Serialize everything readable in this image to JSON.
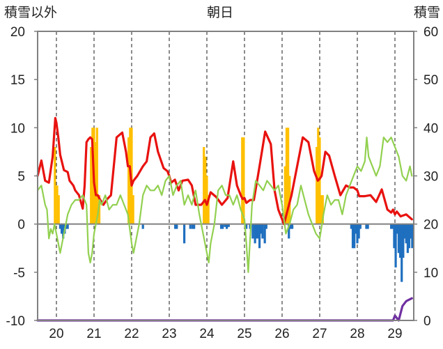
{
  "chart_data": {
    "type": "line",
    "title": "朝日",
    "ylabel_left": "積雪以外",
    "ylabel_right": "積雪",
    "ylim_left": [
      -10,
      20
    ],
    "ylim_right": [
      0,
      60
    ],
    "yticks_left": [
      20,
      15,
      10,
      5,
      0,
      -5,
      -10
    ],
    "yticks_left_labels": [
      "20",
      "15",
      "10",
      "5",
      "0",
      "-5",
      "-10"
    ],
    "yticks_right": [
      60,
      50,
      40,
      30,
      20,
      10,
      0
    ],
    "yticks_right_labels": [
      "60",
      "50",
      "40",
      "30",
      "20",
      "10",
      "0"
    ],
    "x_range": [
      19.5,
      29.5
    ],
    "x_ticks": [
      20,
      21,
      22,
      23,
      24,
      25,
      26,
      27,
      28,
      29
    ],
    "x_tick_labels": [
      "20",
      "21",
      "22",
      "23",
      "24",
      "25",
      "26",
      "27",
      "28",
      "29"
    ],
    "grid": {
      "vertical": "dashed",
      "horizontal": "none"
    },
    "colors": {
      "red_line": "#e8120f",
      "green_line": "#92d050",
      "orange_bars": "#ffc000",
      "blue_bars": "#1f6fbf",
      "purple_line": "#7030a0",
      "axis": "#808080"
    },
    "series": [
      {
        "axis": "left",
        "type": "line",
        "color_key": "red_line",
        "x": [
          19.5,
          19.6,
          19.7,
          19.8,
          19.9,
          19.97,
          20.0,
          20.05,
          20.1,
          20.2,
          20.3,
          20.35,
          20.45,
          20.5,
          20.6,
          20.7,
          20.75,
          20.8,
          20.85,
          20.9,
          20.95,
          21.0,
          21.05,
          21.1,
          21.15,
          21.25,
          21.35,
          21.45,
          21.6,
          21.75,
          21.85,
          21.9,
          21.95,
          22.0,
          22.05,
          22.15,
          22.3,
          22.4,
          22.5,
          22.6,
          22.7,
          22.85,
          22.95,
          23.0,
          23.05,
          23.15,
          23.25,
          23.35,
          23.5,
          23.6,
          23.7,
          23.85,
          23.95,
          24.0,
          24.1,
          24.25,
          24.4,
          24.55,
          24.7,
          24.8,
          24.9,
          24.95,
          25.0,
          25.05,
          25.15,
          25.25,
          25.4,
          25.55,
          25.7,
          25.8,
          25.9,
          26.0,
          26.05,
          26.15,
          26.25,
          26.4,
          26.55,
          26.7,
          26.85,
          26.95,
          27.0,
          27.05,
          27.15,
          27.25,
          27.4,
          27.55,
          27.7,
          27.8,
          27.9,
          28.0,
          28.05,
          28.2,
          28.35,
          28.5,
          28.65,
          28.8,
          28.9,
          28.95,
          29.0,
          29.05,
          29.15,
          29.3,
          29.45
        ],
        "values": [
          5,
          6.6,
          4.5,
          4.3,
          7,
          11,
          10.5,
          9,
          7.2,
          5.6,
          5.4,
          4.5,
          4,
          3.5,
          3,
          1.6,
          4,
          8.5,
          8.8,
          9,
          8.8,
          4.3,
          3,
          3,
          2.6,
          2,
          2.6,
          3,
          9,
          9.5,
          7.5,
          6,
          6,
          4,
          4.5,
          5,
          6,
          6.5,
          9,
          9.4,
          7.5,
          5.8,
          5.5,
          5,
          4.3,
          4.6,
          3.5,
          4.5,
          4.6,
          4,
          2,
          2,
          2.5,
          2,
          3.3,
          2.8,
          2,
          2.7,
          6.5,
          4,
          3,
          2.6,
          2.7,
          2.2,
          2.5,
          2.5,
          6,
          9.6,
          8.3,
          3.5,
          1.5,
          0.5,
          0,
          1.5,
          3,
          6,
          9,
          8.5,
          5.5,
          4.5,
          4.7,
          5,
          7.5,
          7.1,
          5,
          3,
          4,
          3.8,
          3.8,
          3.5,
          2.9,
          2.9,
          3,
          2.3,
          3.6,
          1.5,
          1.2,
          1.5,
          1,
          1.3,
          0.8,
          1,
          0.5
        ]
      },
      {
        "axis": "left",
        "type": "line",
        "color_key": "green_line",
        "x": [
          19.5,
          19.6,
          19.7,
          19.75,
          19.8,
          19.85,
          19.9,
          19.95,
          20.0,
          20.05,
          20.1,
          20.15,
          20.2,
          20.3,
          20.4,
          20.5,
          20.6,
          20.7,
          20.8,
          20.85,
          20.9,
          20.95,
          21.0,
          21.05,
          21.1,
          21.15,
          21.2,
          21.3,
          21.4,
          21.5,
          21.6,
          21.7,
          21.8,
          21.9,
          22.0,
          22.05,
          22.1,
          22.2,
          22.3,
          22.4,
          22.5,
          22.6,
          22.7,
          22.8,
          22.9,
          23.0,
          23.1,
          23.2,
          23.3,
          23.4,
          23.5,
          23.6,
          23.7,
          23.8,
          23.9,
          24.0,
          24.05,
          24.1,
          24.2,
          24.3,
          24.4,
          24.5,
          24.6,
          24.7,
          24.8,
          24.9,
          25.0,
          25.05,
          25.1,
          25.2,
          25.3,
          25.4,
          25.5,
          25.6,
          25.7,
          25.8,
          25.9,
          26.0,
          26.1,
          26.2,
          26.3,
          26.4,
          26.5,
          26.6,
          26.7,
          26.8,
          26.9,
          27.0,
          27.1,
          27.2,
          27.3,
          27.4,
          27.5,
          27.6,
          27.7,
          27.8,
          27.9,
          28.0,
          28.1,
          28.2,
          28.25,
          28.3,
          28.4,
          28.5,
          28.6,
          28.7,
          28.8,
          28.9,
          29.0,
          29.1,
          29.2,
          29.3,
          29.4,
          29.45
        ],
        "values": [
          3.5,
          4,
          2,
          1.5,
          -1.5,
          -0.5,
          -1,
          0,
          -1,
          -2,
          -3,
          -2,
          -1,
          1,
          2,
          2.5,
          2.5,
          3,
          2,
          -3,
          -4,
          -3,
          -1,
          0,
          1,
          2.5,
          2,
          3,
          1.5,
          2,
          2,
          3,
          2,
          1,
          -2,
          -3,
          -2,
          0,
          3,
          4,
          3.5,
          3.5,
          4,
          3,
          4.5,
          5,
          3,
          4,
          4.5,
          2,
          3,
          2,
          3.5,
          1,
          -1,
          -3,
          -4,
          -2,
          0,
          3.5,
          4,
          3,
          3,
          2,
          3,
          1.5,
          0.5,
          -2,
          -5,
          2,
          4.5,
          4,
          3.5,
          4.5,
          4,
          3.5,
          4,
          2,
          -1,
          0,
          1.5,
          2,
          4,
          2.5,
          1,
          0,
          -1,
          -1.5,
          1,
          3,
          2,
          2.5,
          2.5,
          1,
          3,
          4,
          5,
          6,
          5.5,
          6.5,
          9,
          7,
          6,
          5,
          6,
          9,
          8.5,
          9,
          8,
          7,
          5,
          4.5,
          6,
          5
        ]
      },
      {
        "axis": "left",
        "type": "line",
        "color_key": "purple_line",
        "x": [
          19.5,
          28.9,
          28.95,
          29.0,
          29.1,
          29.2,
          29.3,
          29.4,
          29.45
        ],
        "values": [
          -10,
          -10,
          -10,
          -9.5,
          -10,
          -8.5,
          -8,
          -7.8,
          -7.7
        ]
      },
      {
        "axis": "left",
        "type": "bar",
        "color_key": "orange_bars",
        "x": [
          19.96,
          20.02,
          20.06,
          20.92,
          20.96,
          21.0,
          21.04,
          21.08,
          21.14,
          21.92,
          21.96,
          22.0,
          22.04,
          23.92,
          23.96,
          24.0,
          24.04,
          24.94,
          24.98,
          26.08,
          26.12,
          26.16,
          26.2,
          26.92,
          26.96,
          27.0,
          27.04,
          27.08
        ],
        "values": [
          8,
          4,
          3,
          8,
          10,
          10,
          8.5,
          10,
          3,
          9,
          10,
          10,
          3,
          8,
          7,
          5,
          3,
          9,
          9,
          6,
          10,
          10,
          5,
          8,
          10,
          9,
          3,
          3
        ]
      },
      {
        "axis": "left",
        "type": "bar",
        "color_key": "blue_bars",
        "x": [
          20.1,
          20.14,
          20.18,
          20.22,
          20.26,
          20.3,
          22.3,
          23.16,
          23.2,
          23.4,
          23.56,
          23.62,
          23.66,
          24.38,
          24.42,
          24.48,
          24.53,
          24.58,
          25.05,
          25.15,
          25.22,
          25.28,
          25.32,
          25.36,
          25.4,
          25.44,
          25.48,
          25.54,
          25.58,
          26.18,
          26.23,
          26.27,
          27.84,
          27.88,
          27.92,
          27.96,
          28.0,
          28.04,
          28.08,
          28.24,
          28.28,
          28.9,
          28.94,
          28.98,
          29.02,
          29.06,
          29.1,
          29.14,
          29.18,
          29.22,
          29.26,
          29.3,
          29.34,
          29.38,
          29.42,
          29.46
        ],
        "values": [
          -0.5,
          -1,
          -1.5,
          -1,
          -0.5,
          -0.5,
          -0.5,
          -0.5,
          -0.5,
          -2,
          -0.5,
          -0.5,
          -0.5,
          -0.5,
          -0.5,
          -0.3,
          -0.5,
          -0.3,
          -0.5,
          -0.5,
          -1.5,
          -2,
          -1.5,
          -1.5,
          -2.5,
          -1,
          -1.5,
          -2,
          -0.5,
          -1.5,
          -0.5,
          -0.5,
          -0.5,
          -2.5,
          -2.5,
          -1,
          -2,
          -1.5,
          -0.5,
          -0.5,
          -0.5,
          -0.5,
          -0.5,
          -2.5,
          -4.5,
          -1,
          -3,
          -3.5,
          -6,
          -3.5,
          -1.5,
          -2,
          -3,
          -2.5,
          -1.5,
          -2.5
        ]
      }
    ]
  }
}
